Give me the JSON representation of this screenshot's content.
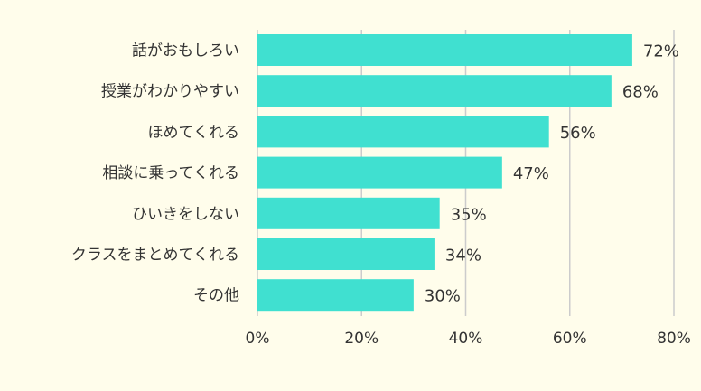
{
  "colors": {
    "background": "#fffdeb",
    "bar": "#40e0d0",
    "grid": "#cccccc",
    "text": "#333333"
  },
  "chart_data": {
    "type": "bar",
    "orientation": "horizontal",
    "title": "",
    "xlabel": "",
    "ylabel": "",
    "categories": [
      "話がおもしろい",
      "授業がわかりやすい",
      "ほめてくれる",
      "相談に乗ってくれる",
      "ひいきをしない",
      "クラスをまとめてくれる",
      "その他"
    ],
    "values": [
      72,
      68,
      56,
      47,
      35,
      34,
      30
    ],
    "value_labels": [
      "72%",
      "68%",
      "56%",
      "47%",
      "35%",
      "34%",
      "30%"
    ],
    "xlim": [
      0,
      80
    ],
    "x_ticks": [
      0,
      20,
      40,
      60,
      80
    ],
    "x_tick_labels": [
      "0%",
      "20%",
      "40%",
      "60%",
      "80%"
    ],
    "grid": true,
    "legend": "none"
  }
}
